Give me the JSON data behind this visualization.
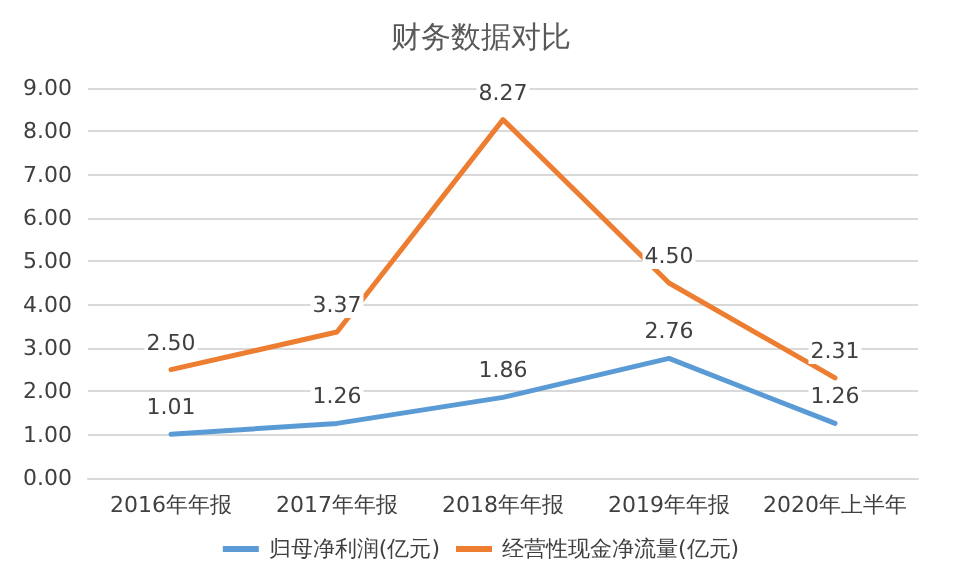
{
  "chart_data": {
    "type": "line",
    "title": "财务数据对比",
    "categories": [
      "2016年年报",
      "2017年年报",
      "2018年年报",
      "2019年年报",
      "2020年上半年"
    ],
    "series": [
      {
        "name": "归母净利润(亿元)",
        "color": "#5b9bd5",
        "values": [
          1.01,
          1.26,
          1.86,
          2.76,
          1.26
        ],
        "value_labels": [
          "1.01",
          "1.26",
          "1.86",
          "2.76",
          "1.26"
        ]
      },
      {
        "name": "经营性现金净流量(亿元)",
        "color": "#ed7d31",
        "values": [
          2.5,
          3.37,
          8.27,
          4.5,
          2.31
        ],
        "value_labels": [
          "2.50",
          "3.37",
          "8.27",
          "4.50",
          "2.31"
        ]
      }
    ],
    "ylim": [
      0,
      9
    ],
    "yticks": [
      {
        "value": 0,
        "label": "0.00"
      },
      {
        "value": 1,
        "label": "1.00"
      },
      {
        "value": 2,
        "label": "2.00"
      },
      {
        "value": 3,
        "label": "3.00"
      },
      {
        "value": 4,
        "label": "4.00"
      },
      {
        "value": 5,
        "label": "5.00"
      },
      {
        "value": 6,
        "label": "6.00"
      },
      {
        "value": 7,
        "label": "7.00"
      },
      {
        "value": 8,
        "label": "8.00"
      },
      {
        "value": 9,
        "label": "9.00"
      }
    ],
    "grid": "y",
    "legend": "bottom",
    "marker": "none",
    "line_style": "solid"
  }
}
